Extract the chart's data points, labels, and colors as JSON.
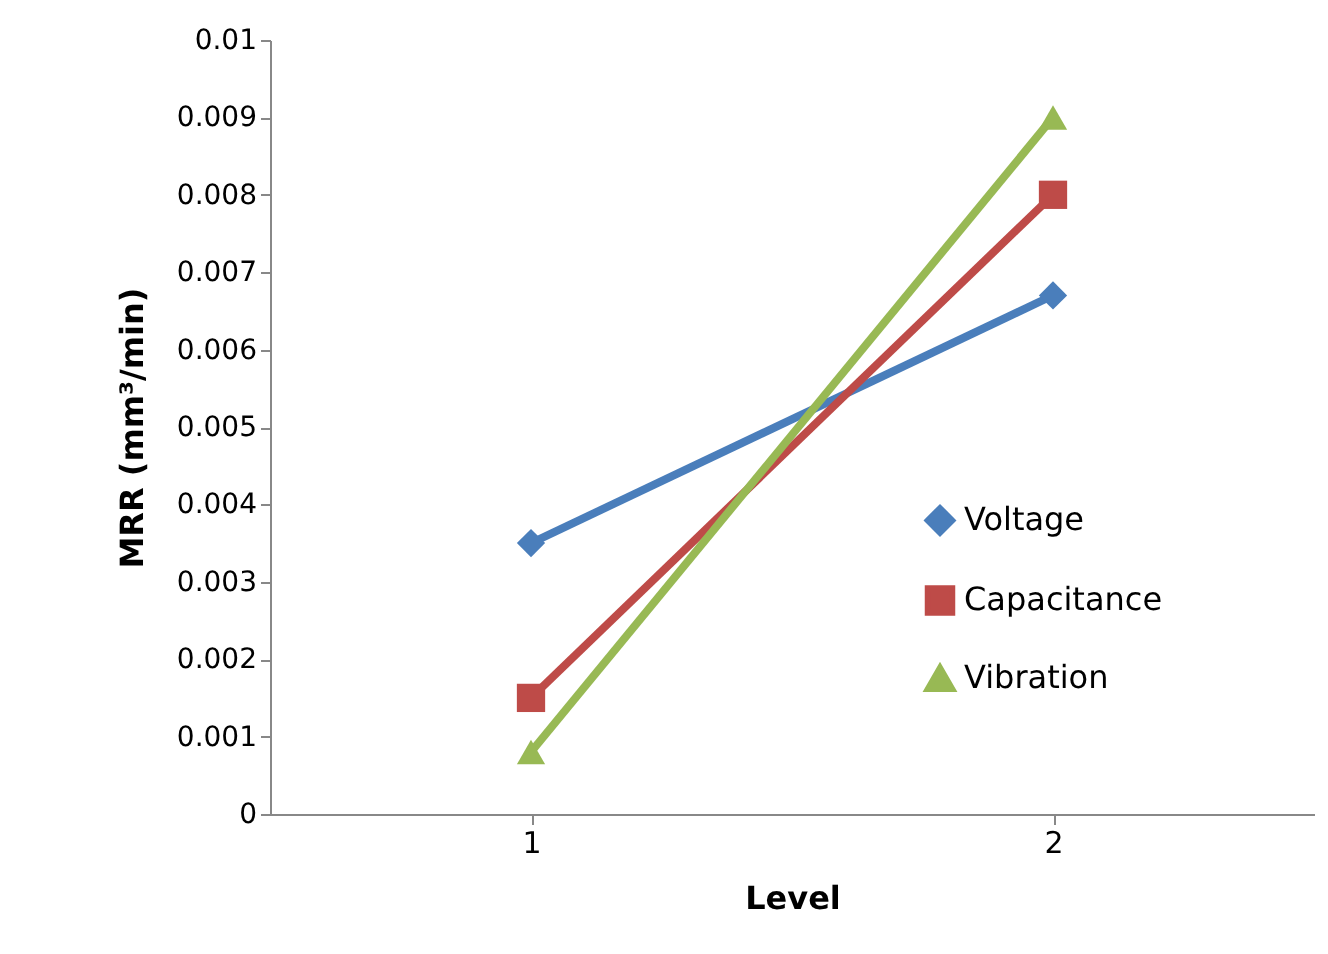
{
  "chart_data": {
    "type": "line",
    "xlabel": "Level",
    "ylabel": "MRR (mm³/min)",
    "categories": [
      "1",
      "2"
    ],
    "series": [
      {
        "name": "Voltage",
        "color": "#4a7ebb",
        "marker": "diamond",
        "values": [
          0.0035,
          0.0067
        ]
      },
      {
        "name": "Capacitance",
        "color": "#be4b48",
        "marker": "square",
        "values": [
          0.0015,
          0.008
        ]
      },
      {
        "name": "Vibration",
        "color": "#98b954",
        "marker": "triangle",
        "values": [
          0.0008,
          0.009
        ]
      }
    ],
    "ylim": [
      0,
      0.01
    ],
    "yticks": [
      0,
      0.001,
      0.002,
      0.003,
      0.004,
      0.005,
      0.006,
      0.007,
      0.008,
      0.009,
      0.01
    ],
    "grid": false,
    "legend": "right"
  }
}
